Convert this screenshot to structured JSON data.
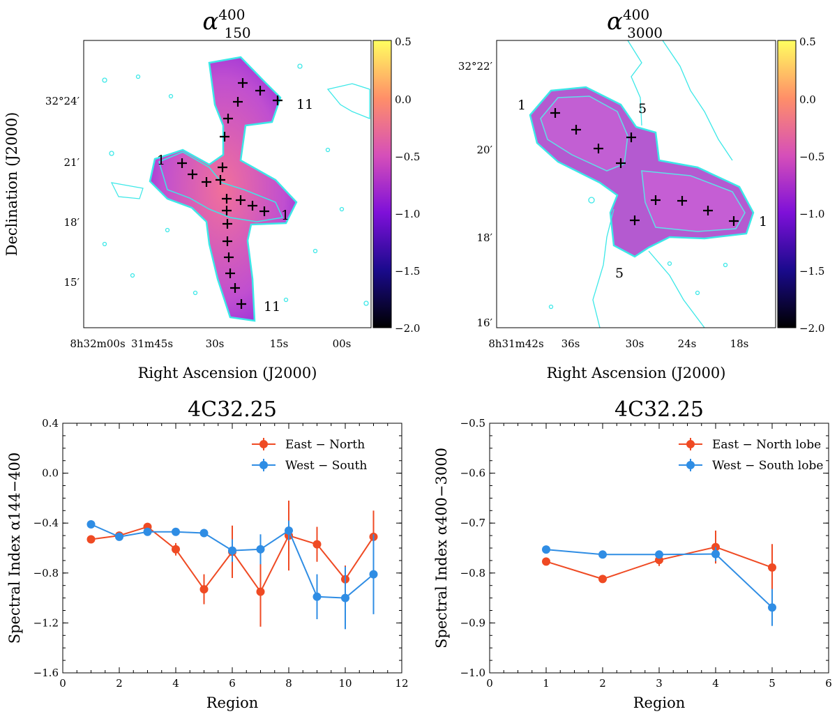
{
  "panels": {
    "alpha150": {
      "title_sup": "400",
      "title_sub": "150",
      "xlabel": "Right Ascension (J2000)",
      "ylabel": "Declination (J2000)",
      "xticks": [
        "8h32m00s",
        "31m45s",
        "30s",
        "15s",
        "00s"
      ],
      "yticks": [
        "32°24′",
        "21′",
        "18′",
        "15′"
      ],
      "colorbar_ticks": [
        "0.5",
        "0.0",
        "−0.5",
        "−1.0",
        "−1.5",
        "−2.0"
      ],
      "region_labels": [
        "1",
        "11",
        "1",
        "11"
      ]
    },
    "alpha3000": {
      "title_sup": "400",
      "title_sub": "3000",
      "xlabel": "Right Ascension (J2000)",
      "xticks": [
        "8h31m42s",
        "36s",
        "30s",
        "24s",
        "18s"
      ],
      "yticks": [
        "32°22′",
        "20′",
        "18′",
        "16′"
      ],
      "colorbar_ticks": [
        "0.5",
        "0.0",
        "−0.5",
        "−1.0",
        "−1.5",
        "−2.0"
      ],
      "region_labels": [
        "1",
        "5",
        "1",
        "5"
      ]
    }
  },
  "chart_data": [
    {
      "type": "line",
      "title": "4C32.25",
      "xlabel": "Region",
      "ylabel": "Spectral Index α144−400",
      "xlim": [
        0,
        12
      ],
      "ylim": [
        -1.6,
        0.4
      ],
      "xticks": [
        0,
        2,
        4,
        6,
        8,
        10,
        12
      ],
      "yticks": [
        0.4,
        0.0,
        -0.4,
        -0.8,
        -1.2,
        -1.6
      ],
      "ytick_labels": [
        "0.4",
        "0.0",
        "−0.4",
        "−0.8",
        "−1.2",
        "−1.6"
      ],
      "legend_position": "top-right",
      "series": [
        {
          "name": "East − North",
          "color": "#ef4a23",
          "x": [
            1,
            2,
            3,
            4,
            5,
            6,
            7,
            8,
            9,
            10,
            11
          ],
          "y": [
            -0.53,
            -0.5,
            -0.43,
            -0.61,
            -0.93,
            -0.63,
            -0.95,
            -0.5,
            -0.57,
            -0.85,
            -0.51
          ],
          "err": [
            0.02,
            0.02,
            0.02,
            0.05,
            0.12,
            0.21,
            0.28,
            0.28,
            0.14,
            0.11,
            0.21
          ]
        },
        {
          "name": "West − South",
          "color": "#2f8de4",
          "x": [
            1,
            2,
            3,
            4,
            5,
            6,
            7,
            8,
            9,
            10,
            11
          ],
          "y": [
            -0.41,
            -0.51,
            -0.47,
            -0.47,
            -0.48,
            -0.62,
            -0.61,
            -0.46,
            -0.99,
            -1.0,
            -0.81
          ],
          "err": [
            0.02,
            0.02,
            0.02,
            0.02,
            0.02,
            0.09,
            0.12,
            0.08,
            0.18,
            0.25,
            0.32
          ]
        }
      ]
    },
    {
      "type": "line",
      "title": "4C32.25",
      "xlabel": "Region",
      "ylabel": "Spectral Index α400−3000",
      "xlim": [
        0,
        6
      ],
      "ylim": [
        -1.0,
        -0.5
      ],
      "xticks": [
        0,
        1,
        2,
        3,
        4,
        5,
        6
      ],
      "yticks": [
        -0.5,
        -0.6,
        -0.7,
        -0.8,
        -0.9,
        -1.0
      ],
      "ytick_labels": [
        "−0.5",
        "−0.6",
        "−0.7",
        "−0.8",
        "−0.9",
        "−1.0"
      ],
      "legend_position": "top-right",
      "series": [
        {
          "name": "East − North lobe",
          "color": "#ef4a23",
          "x": [
            1,
            2,
            3,
            4,
            5
          ],
          "y": [
            -0.777,
            -0.812,
            -0.774,
            -0.748,
            -0.789
          ],
          "err": [
            0.005,
            0.005,
            0.012,
            0.033,
            0.047
          ]
        },
        {
          "name": "West − South lobe",
          "color": "#2f8de4",
          "x": [
            1,
            2,
            3,
            4,
            5
          ],
          "y": [
            -0.753,
            -0.763,
            -0.763,
            -0.762,
            -0.869
          ],
          "err": [
            0.004,
            0.004,
            0.004,
            0.014,
            0.037
          ]
        }
      ]
    }
  ]
}
